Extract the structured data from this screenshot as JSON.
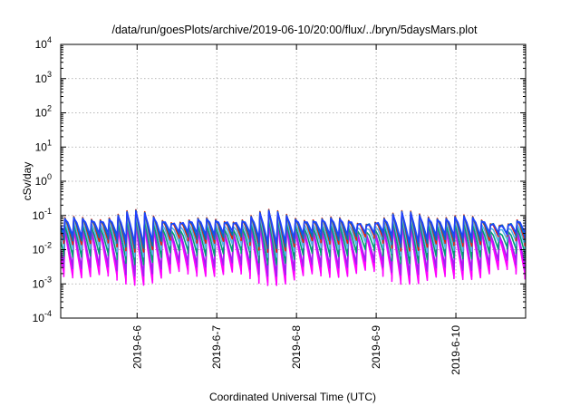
{
  "chart_data": {
    "type": "line",
    "title": "/data/run/goesPlots/archive/2019-06-10/20:00/flux/../bryn/5daysMars.plot",
    "xlabel": "Coordinated Universal Time (UTC)",
    "ylabel": "cSv/day",
    "y_scale": "log",
    "ylim": [
      0.0001,
      10000
    ],
    "y_ticks": [
      {
        "value": 0.0001,
        "base": "10",
        "exp": "-4"
      },
      {
        "value": 0.001,
        "base": "10",
        "exp": "-3"
      },
      {
        "value": 0.01,
        "base": "10",
        "exp": "-2"
      },
      {
        "value": 0.1,
        "base": "10",
        "exp": "-1"
      },
      {
        "value": 1,
        "base": "10",
        "exp": "0"
      },
      {
        "value": 10,
        "base": "10",
        "exp": "1"
      },
      {
        "value": 100,
        "base": "10",
        "exp": "2"
      },
      {
        "value": 1000,
        "base": "10",
        "exp": "3"
      },
      {
        "value": 10000,
        "base": "10",
        "exp": "4"
      }
    ],
    "xlim": [
      "2019-06-05T01:00",
      "2019-06-10T21:00"
    ],
    "x_ticks": [
      {
        "value": "2019-06-06T00:00",
        "label": "2019-6-6"
      },
      {
        "value": "2019-06-07T00:00",
        "label": "2019-6-7"
      },
      {
        "value": "2019-06-08T00:00",
        "label": "2019-6-8"
      },
      {
        "value": "2019-06-09T00:00",
        "label": "2019-6-9"
      },
      {
        "value": "2019-06-10T00:00",
        "label": "2019-6-10"
      }
    ],
    "grid": true,
    "sawtooth": {
      "period_hours": 2.67,
      "peak_range": [
        0.05,
        0.15
      ],
      "trough_range": [
        0.0012,
        0.004
      ]
    },
    "series": [
      {
        "color": "#ff00ff",
        "peak_factor": 0.55,
        "trough_factor": 0.9
      },
      {
        "color": "#ff00ff",
        "peak_factor": 0.45,
        "trough_factor": 0.75
      },
      {
        "color": "#a020f0",
        "peak_factor": 0.5,
        "trough_factor": 1.4
      },
      {
        "color": "#009e73",
        "peak_factor": 0.6,
        "trough_factor": 3.0
      },
      {
        "color": "#56b4e9",
        "peak_factor": 0.75,
        "trough_factor": 5.0
      },
      {
        "color": "#e51e10",
        "peak_factor": 1.0,
        "trough_factor": 7.0
      },
      {
        "color": "#0072b2",
        "peak_factor": 0.95,
        "trough_factor": 9.0
      },
      {
        "color": "#2040ff",
        "peak_factor": 0.9,
        "trough_factor": 12.0
      }
    ]
  }
}
